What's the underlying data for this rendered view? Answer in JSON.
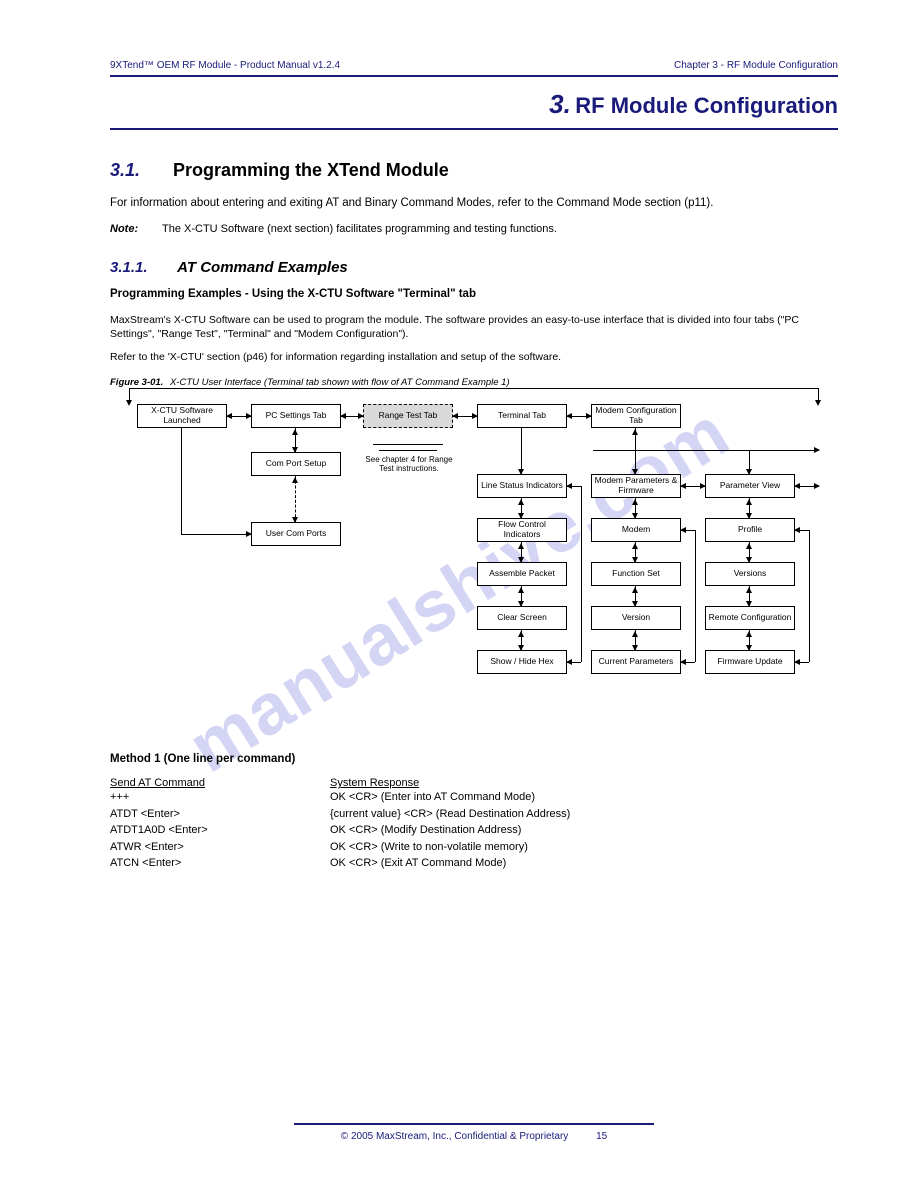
{
  "header": {
    "left": "9XTend™ OEM RF Module - Product Manual v1.2.4",
    "right_chapter": "Chapter 3 - RF Module Configuration"
  },
  "chapter": {
    "number": "3.",
    "title": "RF Module Configuration"
  },
  "section": {
    "number": "3.1.",
    "title": "Programming the XTend Module",
    "intro": "For information about entering and exiting AT and Binary Command Modes, refer to the Command Mode section (p11).",
    "note_label": "Note:",
    "note_text": "The X-CTU Software (next section) facilitates programming and testing functions."
  },
  "subsection": {
    "number": "3.1.1.",
    "title": "AT Command Examples"
  },
  "xctu": {
    "heading": "Programming Examples - Using the X-CTU Software \"Terminal\" tab",
    "body1": "MaxStream's X-CTU Software can be used to program the module. The software provides an easy-to-use interface that is divided into four tabs (\"PC Settings\", \"Range Test\", \"Terminal\" and \"Modem Configuration\").",
    "body2": "Refer to the 'X-CTU' section (p46) for information regarding installation and setup of the software."
  },
  "figure": {
    "number": "Figure 3-01.",
    "caption": "X-CTU User Interface (Terminal tab shown with flow of AT Command Example 1)",
    "top_row": [
      "X-CTU Software Launched",
      "PC Settings Tab",
      "Range Test Tab",
      "Terminal Tab",
      "Modem Configuration Tab"
    ],
    "pc_col": [
      "Com Port Setup",
      "User Com Ports"
    ],
    "caption_sub": "See chapter 4 for Range Test instructions.",
    "term_col": [
      "Line Status Indicators",
      "Flow Control Indicators",
      "Assemble Packet",
      "Clear Screen",
      "Show / Hide Hex"
    ],
    "mc_col_a": [
      "Modem Parameters & Firmware",
      "Modem",
      "Function Set",
      "Version",
      "Current Parameters"
    ],
    "mc_col_b": [
      "Parameter View",
      "Profile",
      "Versions",
      "Remote Configuration",
      "Firmware Update"
    ]
  },
  "method1": {
    "heading": "Method 1 (One line per command)",
    "send_heading": "Send AT Command",
    "sys_heading": "System Response",
    "rows": [
      {
        "send": "+++",
        "resp": "OK <CR> (Enter into AT Command Mode)"
      },
      {
        "send": "ATDT <Enter>",
        "resp": "{current value} <CR> (Read Destination Address)"
      },
      {
        "send": "ATDT1A0D <Enter>",
        "resp": "OK <CR> (Modify Destination Address)"
      },
      {
        "send": "ATWR <Enter>",
        "resp": "OK <CR> (Write to non-volatile memory)"
      },
      {
        "send": "ATCN <Enter>",
        "resp": "OK <CR> (Exit AT Command Mode)"
      }
    ]
  },
  "footer": {
    "text": "© 2005 MaxStream, Inc., Confidential & Proprietary",
    "page": "15"
  },
  "watermark": "manualshive.com",
  "colors": {
    "accent": "#1a1a7a",
    "box_fill": "#d9d9d9",
    "line": "#000000",
    "bg": "#ffffff"
  }
}
